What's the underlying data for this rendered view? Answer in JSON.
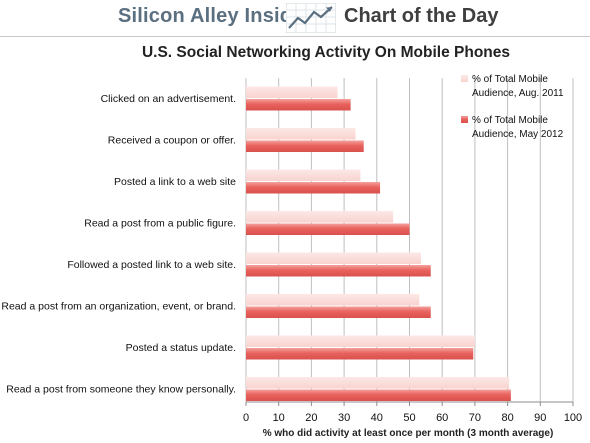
{
  "header": {
    "brand": "Silicon Alley Insider",
    "section": "Chart of the Day",
    "logo_icon": "trend-line-chart-icon"
  },
  "colors": {
    "aug2011": "#f8d3cf",
    "may2012": "#e9625e",
    "header_brand": "#5a6f80",
    "grid": "#bfbfbf"
  },
  "chart_data": {
    "type": "bar",
    "orientation": "horizontal",
    "title": "U.S. Social Networking Activity On Mobile Phones",
    "xlabel": "% who did activity at least once per month (3 month average)",
    "xlim": [
      0,
      100
    ],
    "xticks": [
      0,
      10,
      20,
      30,
      40,
      50,
      60,
      70,
      80,
      90,
      100
    ],
    "grid": "vertical",
    "legend_position": "top-right",
    "categories": [
      "Clicked on an advertisement.",
      "Received a coupon or offer.",
      "Posted a link to a web site",
      "Read a post from a public figure.",
      "Followed a posted link to a web site.",
      "Read a post from an organization, event, or brand.",
      "Posted a status update.",
      "Read a post from someone they know personally."
    ],
    "series": [
      {
        "name": "% of Total Mobile Audience, Aug. 2011",
        "legend_lines": [
          "% of Total Mobile",
          "Audience, Aug. 2011"
        ],
        "values": [
          28,
          33.5,
          35,
          45,
          53.5,
          53,
          70,
          80.5
        ]
      },
      {
        "name": "% of Total Mobile Audience, May 2012",
        "legend_lines": [
          "% of Total Mobile",
          "Audience, May 2012"
        ],
        "values": [
          32,
          36,
          41,
          50,
          56.5,
          56.5,
          69.5,
          81
        ]
      }
    ]
  }
}
